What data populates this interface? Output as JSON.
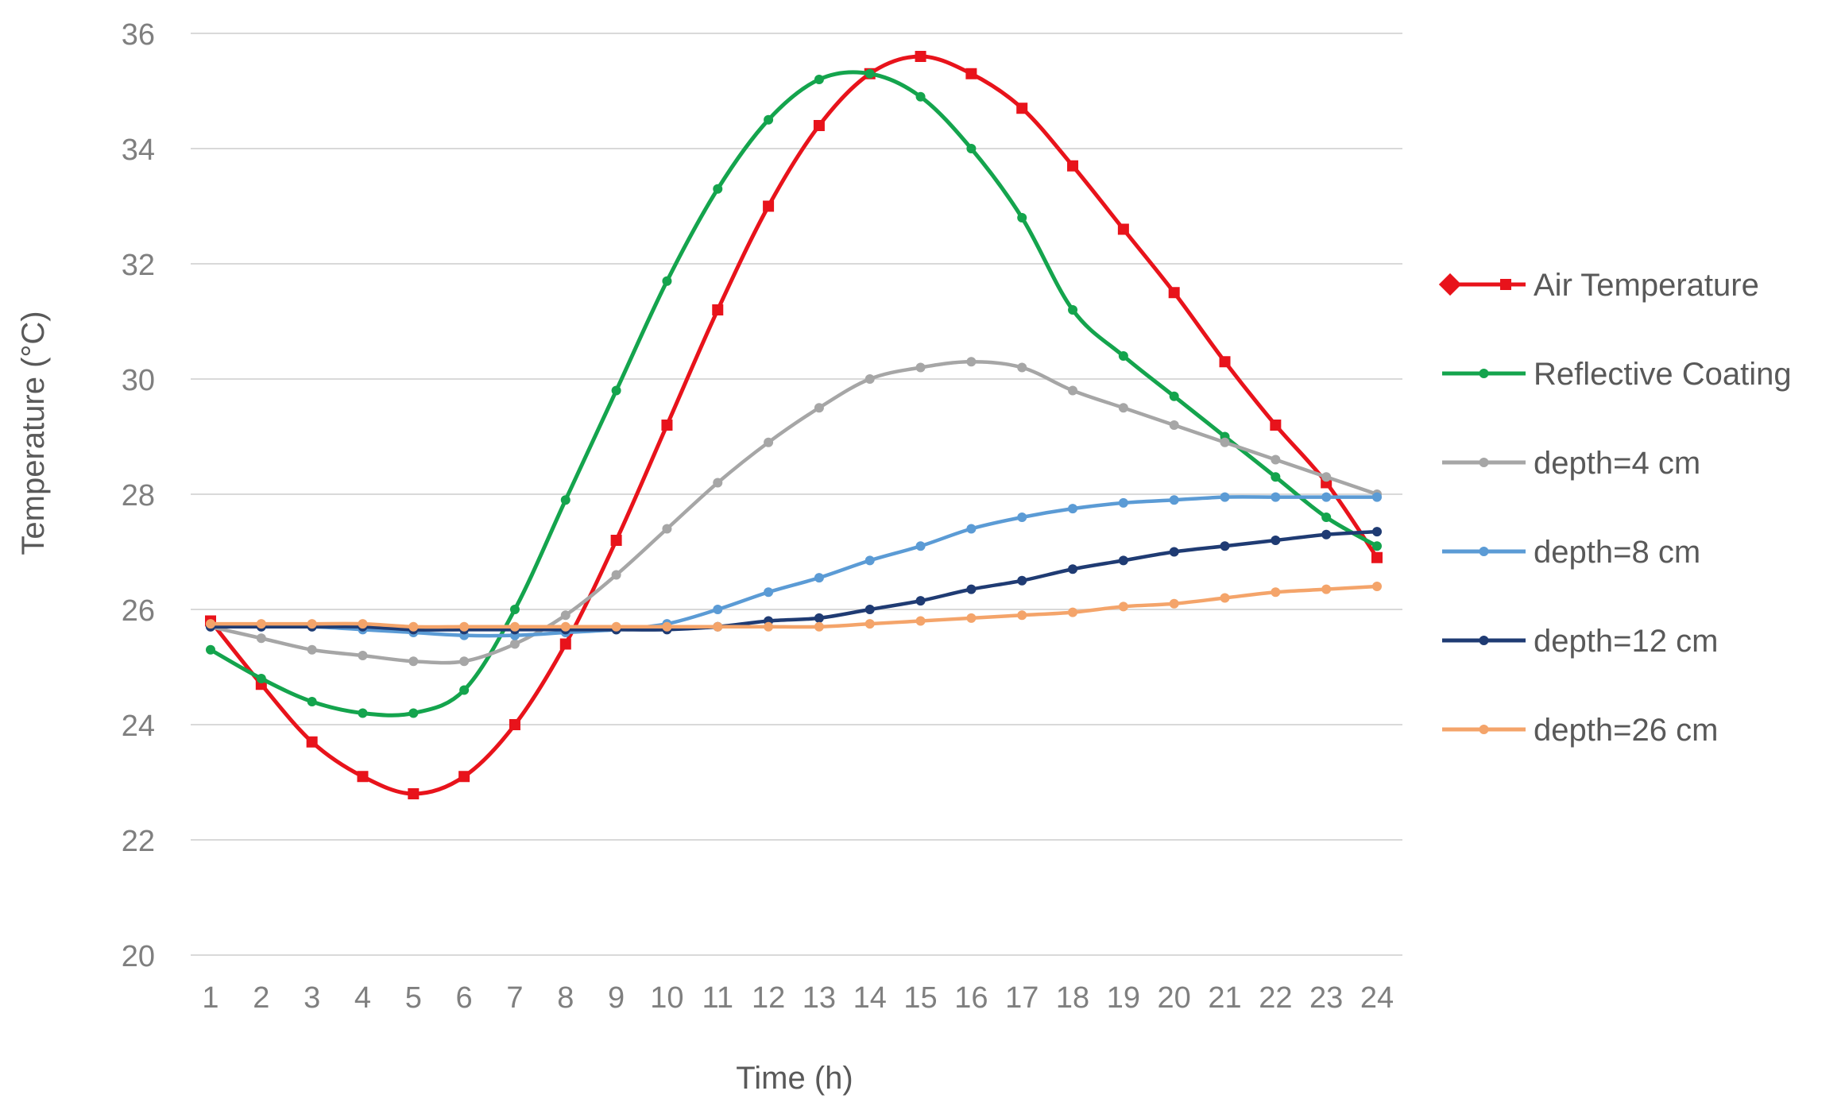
{
  "chart_data": {
    "type": "line",
    "title": "",
    "xlabel": "Time (h)",
    "ylabel": "Temperature (°C)",
    "x": [
      1,
      2,
      3,
      4,
      5,
      6,
      7,
      8,
      9,
      10,
      11,
      12,
      13,
      14,
      15,
      16,
      17,
      18,
      19,
      20,
      21,
      22,
      23,
      24
    ],
    "xtick_labels": [
      "1",
      "2",
      "3",
      "4",
      "5",
      "6",
      "7",
      "8",
      "9",
      "10",
      "11",
      "12",
      "13",
      "14",
      "15",
      "16",
      "17",
      "18",
      "19",
      "20",
      "21",
      "22",
      "23",
      "24"
    ],
    "ylim": [
      20,
      36
    ],
    "yticks": [
      20,
      22,
      24,
      26,
      28,
      30,
      32,
      34,
      36
    ],
    "ytick_labels": [
      "20",
      "22",
      "24",
      "26",
      "28",
      "30",
      "32",
      "34",
      "36"
    ],
    "grid": "horizontal",
    "legend_position": "right",
    "series": [
      {
        "name": "Air Temperature",
        "color": "#e8131b",
        "marker": "square",
        "values": [
          25.8,
          24.7,
          23.7,
          23.1,
          22.8,
          23.1,
          24.0,
          25.4,
          27.2,
          29.2,
          31.2,
          33.0,
          34.4,
          35.3,
          35.6,
          35.3,
          34.7,
          33.7,
          32.6,
          31.5,
          30.3,
          29.2,
          28.2,
          26.9
        ]
      },
      {
        "name": "Reflective Coating",
        "color": "#14a44d",
        "marker": "circle",
        "values": [
          25.3,
          24.8,
          24.4,
          24.2,
          24.2,
          24.6,
          26.0,
          27.9,
          29.8,
          31.7,
          33.3,
          34.5,
          35.2,
          35.3,
          34.9,
          34.0,
          32.8,
          31.2,
          30.4,
          29.7,
          29.0,
          28.3,
          27.6,
          27.1
        ]
      },
      {
        "name": "depth=4 cm",
        "color": "#a6a6a6",
        "marker": "circle",
        "values": [
          25.7,
          25.5,
          25.3,
          25.2,
          25.1,
          25.1,
          25.4,
          25.9,
          26.6,
          27.4,
          28.2,
          28.9,
          29.5,
          30.0,
          30.2,
          30.3,
          30.2,
          29.8,
          29.5,
          29.2,
          28.9,
          28.6,
          28.3,
          28.0
        ]
      },
      {
        "name": "depth=8 cm",
        "color": "#5b9bd5",
        "marker": "circle",
        "values": [
          25.7,
          25.7,
          25.7,
          25.65,
          25.6,
          25.55,
          25.55,
          25.6,
          25.65,
          25.75,
          26.0,
          26.3,
          26.55,
          26.85,
          27.1,
          27.4,
          27.6,
          27.75,
          27.85,
          27.9,
          27.95,
          27.95,
          27.95,
          27.95
        ]
      },
      {
        "name": "depth=12 cm",
        "color": "#1f3b73",
        "marker": "circle",
        "values": [
          25.7,
          25.7,
          25.7,
          25.7,
          25.65,
          25.65,
          25.65,
          25.65,
          25.65,
          25.65,
          25.7,
          25.8,
          25.85,
          26.0,
          26.15,
          26.35,
          26.5,
          26.7,
          26.85,
          27.0,
          27.1,
          27.2,
          27.3,
          27.35
        ]
      },
      {
        "name": "depth=26 cm",
        "color": "#f4a46a",
        "marker": "circle",
        "values": [
          25.75,
          25.75,
          25.75,
          25.75,
          25.7,
          25.7,
          25.7,
          25.7,
          25.7,
          25.7,
          25.7,
          25.7,
          25.7,
          25.75,
          25.8,
          25.85,
          25.9,
          25.95,
          26.05,
          26.1,
          26.2,
          26.3,
          26.35,
          26.4
        ]
      }
    ]
  }
}
